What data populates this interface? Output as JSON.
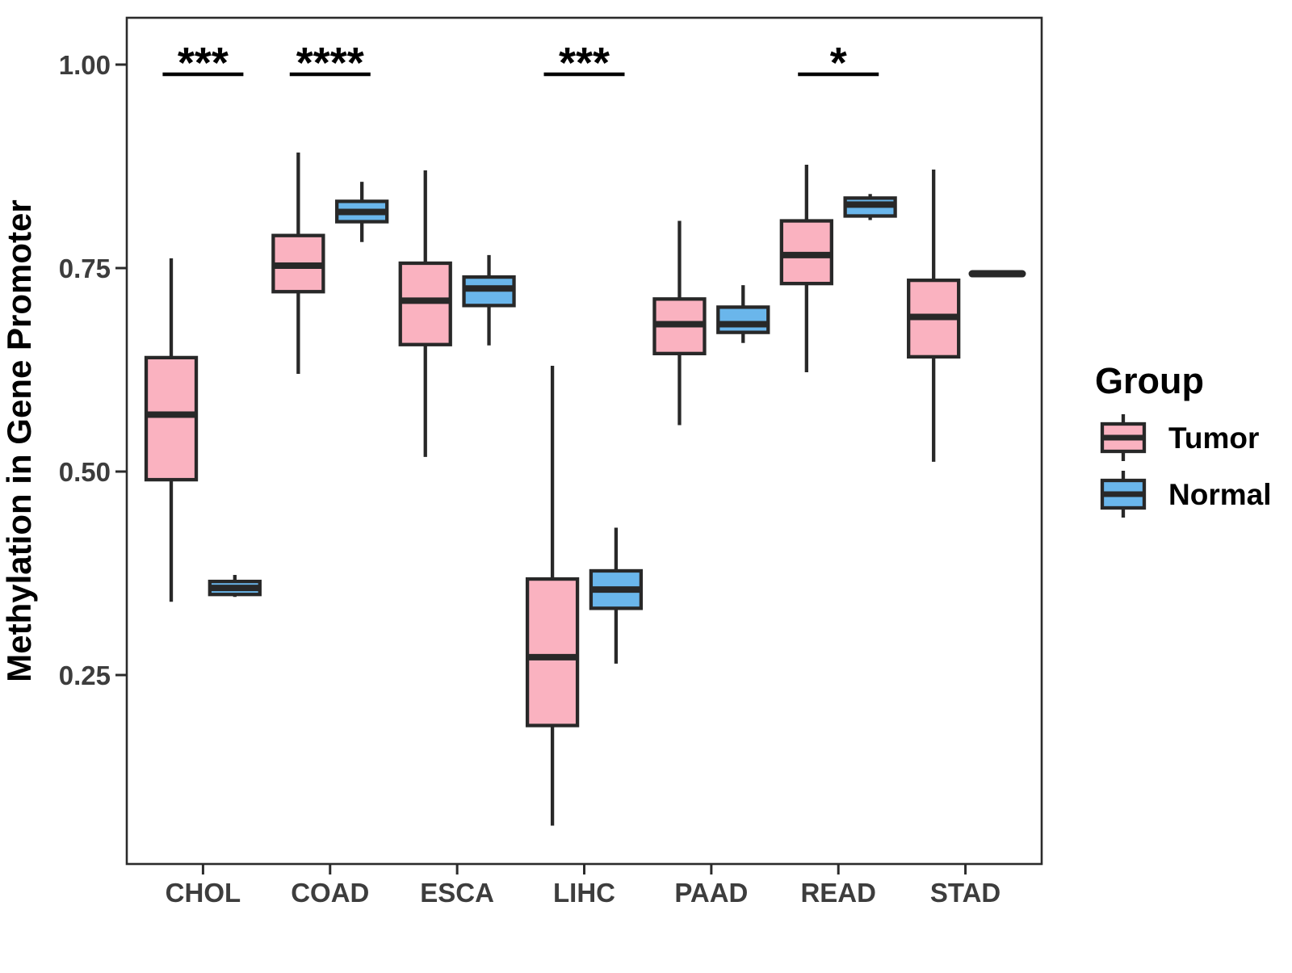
{
  "chart_data": {
    "type": "grouped_boxplot",
    "title": "",
    "xlabel": "",
    "categories": [
      "CHOL",
      "COAD",
      "ESCA",
      "LIHC",
      "PAAD",
      "READ",
      "STAD"
    ],
    "y_axis": {
      "label": "Methylation in Gene Promoter",
      "ticks": [
        {
          "value": 1.0,
          "label": "1.00"
        },
        {
          "value": 0.75,
          "label": "0.75"
        },
        {
          "value": 0.5,
          "label": "0.50"
        },
        {
          "value": 0.25,
          "label": "0.25"
        }
      ],
      "range_shown": [
        0.02,
        1.06
      ],
      "grid": false
    },
    "series": [
      {
        "name": "Tumor",
        "fill": "#FAB2C0",
        "boxes": [
          {
            "category": "CHOL",
            "whisker_low": 0.34,
            "q1": 0.49,
            "median": 0.57,
            "q3": 0.64,
            "whisker_high": 0.762
          },
          {
            "category": "COAD",
            "whisker_low": 0.62,
            "q1": 0.721,
            "median": 0.753,
            "q3": 0.79,
            "whisker_high": 0.892
          },
          {
            "category": "ESCA",
            "whisker_low": 0.518,
            "q1": 0.656,
            "median": 0.71,
            "q3": 0.756,
            "whisker_high": 0.87
          },
          {
            "category": "LIHC",
            "whisker_low": 0.065,
            "q1": 0.188,
            "median": 0.272,
            "q3": 0.368,
            "whisker_high": 0.63
          },
          {
            "category": "PAAD",
            "whisker_low": 0.557,
            "q1": 0.645,
            "median": 0.681,
            "q3": 0.712,
            "whisker_high": 0.808
          },
          {
            "category": "READ",
            "whisker_low": 0.622,
            "q1": 0.731,
            "median": 0.766,
            "q3": 0.808,
            "whisker_high": 0.877
          },
          {
            "category": "STAD",
            "whisker_low": 0.512,
            "q1": 0.641,
            "median": 0.69,
            "q3": 0.735,
            "whisker_high": 0.871
          }
        ]
      },
      {
        "name": "Normal",
        "fill": "#6AB6EB",
        "boxes": [
          {
            "category": "CHOL",
            "whisker_low": 0.346,
            "q1": 0.349,
            "median": 0.357,
            "q3": 0.365,
            "whisker_high": 0.373
          },
          {
            "category": "COAD",
            "whisker_low": 0.782,
            "q1": 0.807,
            "median": 0.819,
            "q3": 0.832,
            "whisker_high": 0.856
          },
          {
            "category": "ESCA",
            "whisker_low": 0.655,
            "q1": 0.704,
            "median": 0.725,
            "q3": 0.739,
            "whisker_high": 0.766
          },
          {
            "category": "LIHC",
            "whisker_low": 0.264,
            "q1": 0.332,
            "median": 0.355,
            "q3": 0.378,
            "whisker_high": 0.431
          },
          {
            "category": "PAAD",
            "whisker_low": 0.658,
            "q1": 0.671,
            "median": 0.681,
            "q3": 0.702,
            "whisker_high": 0.729
          },
          {
            "category": "READ",
            "whisker_low": 0.809,
            "q1": 0.814,
            "median": 0.828,
            "q3": 0.836,
            "whisker_high": 0.841
          },
          {
            "category": "STAD",
            "whisker_low": 0.743,
            "q1": 0.743,
            "median": 0.743,
            "q3": 0.743,
            "whisker_high": 0.743
          }
        ]
      }
    ],
    "significance": [
      {
        "category": "CHOL",
        "label": "***"
      },
      {
        "category": "COAD",
        "label": "****"
      },
      {
        "category": "LIHC",
        "label": "***"
      },
      {
        "category": "READ",
        "label": "*"
      }
    ],
    "legend": {
      "title": "Group",
      "position": "right",
      "entries": [
        {
          "label": "Tumor"
        },
        {
          "label": "Normal"
        }
      ]
    },
    "styles": {
      "box_border_color": "#282828",
      "axis_color": "#2B2B2B",
      "tick_label_color": "#3D3D3D",
      "significance_color": "#000000",
      "background": "#FFFFFF"
    }
  }
}
